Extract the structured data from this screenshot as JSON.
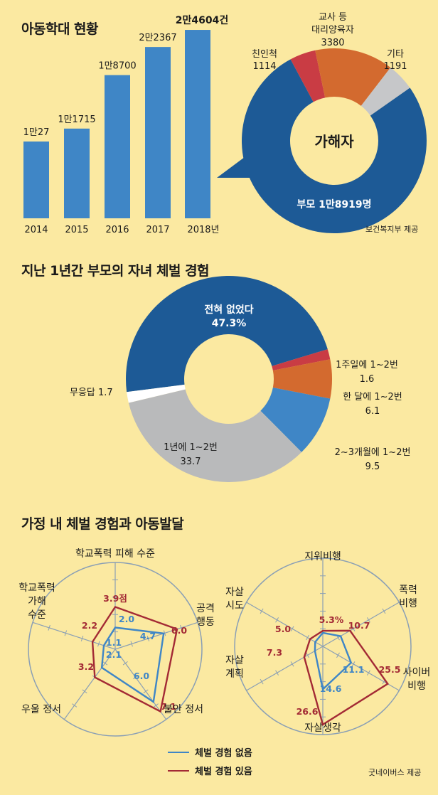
{
  "section1": {
    "title": "아동학대 현황",
    "source": "보건복지부 제공",
    "bars": [
      {
        "year": "2014",
        "value": 10027,
        "label": "1만27"
      },
      {
        "year": "2015",
        "value": 11715,
        "label": "1만1715"
      },
      {
        "year": "2016",
        "value": 18700,
        "label": "1만8700"
      },
      {
        "year": "2017",
        "value": 22367,
        "label": "2만2367"
      },
      {
        "year": "2018년",
        "value": 24604,
        "label": "2만4604건"
      }
    ],
    "donut_center": "가해자",
    "donut": [
      {
        "name": "부모",
        "value": 18919,
        "label": "부모 1만8919명",
        "color": "#1d5a96"
      },
      {
        "name": "친인척",
        "value": 1114,
        "label_name": "친인척",
        "label_value": "1114",
        "color": "#c93c44"
      },
      {
        "name": "교사 등 대리양육자",
        "value": 3380,
        "label_name1": "교사 등",
        "label_name2": "대리양육자",
        "label_value": "3380",
        "color": "#d36a2f"
      },
      {
        "name": "기타",
        "value": 1191,
        "label_name": "기타",
        "label_value": "1191",
        "color": "#c6c7c9"
      }
    ]
  },
  "section2": {
    "title": "지난 1년간 부모의 자녀 체벌 경험",
    "slices": [
      {
        "name1": "전혀 없었다",
        "value": 47.3,
        "label": "47.3%",
        "color": "#1d5a96"
      },
      {
        "name1": "1주일에 1~2번",
        "value": 1.6,
        "label": "1.6",
        "color": "#c93c44"
      },
      {
        "name1": "한 달에 1~2번",
        "value": 6.1,
        "label": "6.1",
        "color": "#d36a2f"
      },
      {
        "name1": "2~3개월에 1~2번",
        "value": 9.5,
        "label": "9.5",
        "color": "#3f86c6"
      },
      {
        "name1": "1년에 1~2번",
        "value": 33.7,
        "label": "33.7",
        "color": "#b9babb"
      },
      {
        "name1": "무응답",
        "value": 1.7,
        "label": "무응답 1.7",
        "color": "#ffffff"
      }
    ]
  },
  "section3": {
    "title": "가정 내 체벌 경험과 아동발달",
    "source": "굿네이버스 제공",
    "legend": [
      {
        "label": "체벌 경험 없음",
        "color": "#3f86c6"
      },
      {
        "label": "체벌 경험 있음",
        "color": "#a32a35"
      }
    ]
  },
  "chart_data": [
    {
      "type": "bar",
      "title": "아동학대 현황",
      "categories": [
        "2014",
        "2015",
        "2016",
        "2017",
        "2018"
      ],
      "values": [
        10027,
        11715,
        18700,
        22367,
        24604
      ],
      "ylim": [
        0,
        26000
      ]
    },
    {
      "type": "pie",
      "title": "가해자",
      "categories": [
        "부모",
        "친인척",
        "교사 등 대리양육자",
        "기타"
      ],
      "values": [
        18919,
        1114,
        3380,
        1191
      ]
    },
    {
      "type": "pie",
      "title": "지난 1년간 부모의 자녀 체벌 경험",
      "categories": [
        "전혀 없었다",
        "1주일에 1~2번",
        "한 달에 1~2번",
        "2~3개월에 1~2번",
        "1년에 1~2번",
        "무응답"
      ],
      "values": [
        47.3,
        1.6,
        6.1,
        9.5,
        33.7,
        1.7
      ]
    },
    {
      "type": "radar",
      "title": "가정 내 체벌 경험과 아동발달 (정서·행동)",
      "axes": [
        {
          "top": "학교폭력 피해 수준"
        },
        {
          "l1": "공격",
          "l2": "행동"
        },
        {
          "top": "불안 정서"
        },
        {
          "top": "우울 정서"
        },
        {
          "l1": "학교폭력",
          "l2": "가해",
          "l3": "수준"
        }
      ],
      "max": 8,
      "series": [
        {
          "name": "체벌 경험 없음",
          "values": [
            2.0,
            4.7,
            6.0,
            2.1,
            1.1
          ],
          "labels": [
            "2.0",
            "4.7",
            "6.0",
            "2.1",
            "1.1"
          ]
        },
        {
          "name": "체벌 경험 있음",
          "values": [
            3.9,
            6.0,
            7.1,
            3.2,
            2.2
          ],
          "labels": [
            "3.9점",
            "6.0",
            "7.1",
            "3.2",
            "2.2"
          ]
        }
      ]
    },
    {
      "type": "radar",
      "title": "가정 내 체벌 경험과 아동발달 (비행·자살)",
      "axes": [
        {
          "top": "지위비행"
        },
        {
          "l1": "폭력",
          "l2": "비행"
        },
        {
          "l1": "사이버",
          "l2": "비행"
        },
        {
          "top": "자살생각"
        },
        {
          "l1": "자살",
          "l2": "계획"
        },
        {
          "l1": "자살",
          "l2": "시도"
        }
      ],
      "max": 30,
      "series": [
        {
          "name": "체벌 경험 없음",
          "values": [
            4.6,
            7.0,
            11.1,
            14.6,
            3.1,
            3.0
          ],
          "labels": [
            "",
            "",
            "11.1",
            "14.6",
            "",
            ""
          ]
        },
        {
          "name": "체벌 경험 있음",
          "values": [
            5.3,
            10.7,
            25.5,
            26.6,
            7.3,
            5.0
          ],
          "labels": [
            "5.3%",
            "10.7",
            "25.5",
            "26.6",
            "7.3",
            "5.0"
          ]
        }
      ]
    }
  ]
}
